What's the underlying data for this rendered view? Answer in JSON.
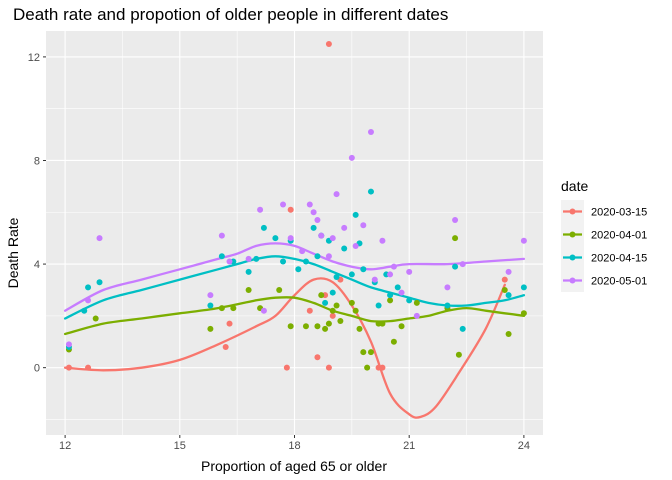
{
  "chart_data": {
    "type": "scatter",
    "title": "Death rate and propotion of older people in different dates",
    "xlabel": "Proportion of aged 65 or older",
    "ylabel": "Death Rate",
    "xlim": [
      11.5,
      24.5
    ],
    "ylim": [
      -2.6,
      13.0
    ],
    "xticks": [
      12,
      15,
      18,
      21,
      24
    ],
    "yticks": [
      0,
      4,
      8,
      12
    ],
    "grid": true,
    "legend": {
      "title": "date",
      "placement": "right"
    },
    "smooth": "loess",
    "series": [
      {
        "name": "2020-03-15",
        "color": "#F8766D",
        "points": [
          [
            12.1,
            0.0
          ],
          [
            12.6,
            0.0
          ],
          [
            16.2,
            0.8
          ],
          [
            16.3,
            1.7
          ],
          [
            17.8,
            0.0
          ],
          [
            17.9,
            6.1
          ],
          [
            18.4,
            2.2
          ],
          [
            18.6,
            0.4
          ],
          [
            18.8,
            2.8
          ],
          [
            18.9,
            0.0
          ],
          [
            18.9,
            12.5
          ],
          [
            19.0,
            2.0
          ],
          [
            19.2,
            3.4
          ],
          [
            20.2,
            0.0
          ],
          [
            20.3,
            0.0
          ],
          [
            23.5,
            3.4
          ]
        ],
        "smooth": [
          [
            12.0,
            0.0
          ],
          [
            13.0,
            -0.1
          ],
          [
            14.0,
            0.0
          ],
          [
            15.0,
            0.3
          ],
          [
            16.0,
            0.9
          ],
          [
            17.0,
            1.6
          ],
          [
            17.5,
            2.0
          ],
          [
            18.0,
            2.8
          ],
          [
            18.5,
            3.4
          ],
          [
            19.0,
            3.3
          ],
          [
            19.5,
            2.4
          ],
          [
            20.0,
            1.0
          ],
          [
            20.5,
            -1.0
          ],
          [
            21.0,
            -1.8
          ],
          [
            21.3,
            -1.9
          ],
          [
            21.7,
            -1.5
          ],
          [
            22.3,
            -0.2
          ],
          [
            23.0,
            1.5
          ],
          [
            23.5,
            3.2
          ]
        ]
      },
      {
        "name": "2020-04-01",
        "color": "#7CAE00",
        "points": [
          [
            12.1,
            0.7
          ],
          [
            12.8,
            1.9
          ],
          [
            15.8,
            1.5
          ],
          [
            16.1,
            2.3
          ],
          [
            16.4,
            2.3
          ],
          [
            16.8,
            3.0
          ],
          [
            17.1,
            2.3
          ],
          [
            17.6,
            3.0
          ],
          [
            17.9,
            1.6
          ],
          [
            18.3,
            1.6
          ],
          [
            18.6,
            1.6
          ],
          [
            18.7,
            2.8
          ],
          [
            18.8,
            1.5
          ],
          [
            18.9,
            1.7
          ],
          [
            19.0,
            2.2
          ],
          [
            19.1,
            2.4
          ],
          [
            19.2,
            1.8
          ],
          [
            19.5,
            2.5
          ],
          [
            19.6,
            2.2
          ],
          [
            19.7,
            1.5
          ],
          [
            19.8,
            0.6
          ],
          [
            19.9,
            0.0
          ],
          [
            20.0,
            0.6
          ],
          [
            20.2,
            1.7
          ],
          [
            20.3,
            1.7
          ],
          [
            20.5,
            2.6
          ],
          [
            20.6,
            1.0
          ],
          [
            20.8,
            1.6
          ],
          [
            21.2,
            2.5
          ],
          [
            22.0,
            2.3
          ],
          [
            22.2,
            5.0
          ],
          [
            22.3,
            0.5
          ],
          [
            23.5,
            3.0
          ],
          [
            23.6,
            1.3
          ],
          [
            24.0,
            2.1
          ]
        ],
        "smooth": [
          [
            12.0,
            1.3
          ],
          [
            13.0,
            1.7
          ],
          [
            14.0,
            1.9
          ],
          [
            15.0,
            2.1
          ],
          [
            16.0,
            2.3
          ],
          [
            17.0,
            2.6
          ],
          [
            17.5,
            2.7
          ],
          [
            18.0,
            2.7
          ],
          [
            18.5,
            2.5
          ],
          [
            19.0,
            2.2
          ],
          [
            19.5,
            2.0
          ],
          [
            20.0,
            1.8
          ],
          [
            20.5,
            1.8
          ],
          [
            21.0,
            1.9
          ],
          [
            21.5,
            2.0
          ],
          [
            22.0,
            2.2
          ],
          [
            22.5,
            2.3
          ],
          [
            23.0,
            2.2
          ],
          [
            23.5,
            2.1
          ],
          [
            24.0,
            2.0
          ]
        ]
      },
      {
        "name": "2020-04-15",
        "color": "#00BFC4",
        "points": [
          [
            12.1,
            0.8
          ],
          [
            12.5,
            2.2
          ],
          [
            12.6,
            3.1
          ],
          [
            12.9,
            3.3
          ],
          [
            15.8,
            2.4
          ],
          [
            16.1,
            4.3
          ],
          [
            16.4,
            4.1
          ],
          [
            16.8,
            3.7
          ],
          [
            17.0,
            4.2
          ],
          [
            17.2,
            5.4
          ],
          [
            17.5,
            5.0
          ],
          [
            17.7,
            4.1
          ],
          [
            17.9,
            4.9
          ],
          [
            18.1,
            3.8
          ],
          [
            18.3,
            4.1
          ],
          [
            18.5,
            5.4
          ],
          [
            18.6,
            4.3
          ],
          [
            18.7,
            5.1
          ],
          [
            18.8,
            2.5
          ],
          [
            18.9,
            4.9
          ],
          [
            19.0,
            2.9
          ],
          [
            19.1,
            3.5
          ],
          [
            19.3,
            4.6
          ],
          [
            19.5,
            3.6
          ],
          [
            19.6,
            5.9
          ],
          [
            19.7,
            4.8
          ],
          [
            19.8,
            3.8
          ],
          [
            20.0,
            6.8
          ],
          [
            20.1,
            3.3
          ],
          [
            20.2,
            2.4
          ],
          [
            20.4,
            3.6
          ],
          [
            20.5,
            2.8
          ],
          [
            20.7,
            3.1
          ],
          [
            21.0,
            2.6
          ],
          [
            22.0,
            2.4
          ],
          [
            22.2,
            3.9
          ],
          [
            22.4,
            1.5
          ],
          [
            23.6,
            2.8
          ],
          [
            24.0,
            3.1
          ]
        ],
        "smooth": [
          [
            12.0,
            1.9
          ],
          [
            13.0,
            2.6
          ],
          [
            14.0,
            3.0
          ],
          [
            15.0,
            3.4
          ],
          [
            16.0,
            3.8
          ],
          [
            16.5,
            4.0
          ],
          [
            17.0,
            4.2
          ],
          [
            17.5,
            4.3
          ],
          [
            18.0,
            4.2
          ],
          [
            18.5,
            4.0
          ],
          [
            19.0,
            3.7
          ],
          [
            19.5,
            3.4
          ],
          [
            20.0,
            3.1
          ],
          [
            20.5,
            2.9
          ],
          [
            21.0,
            2.7
          ],
          [
            21.5,
            2.5
          ],
          [
            22.0,
            2.4
          ],
          [
            22.5,
            2.4
          ],
          [
            23.0,
            2.5
          ],
          [
            23.5,
            2.6
          ],
          [
            24.0,
            2.8
          ]
        ]
      },
      {
        "name": "2020-05-01",
        "color": "#C77CFF",
        "points": [
          [
            12.1,
            0.9
          ],
          [
            12.6,
            2.6
          ],
          [
            12.9,
            5.0
          ],
          [
            15.8,
            2.8
          ],
          [
            16.1,
            5.1
          ],
          [
            16.3,
            4.1
          ],
          [
            16.8,
            4.2
          ],
          [
            17.1,
            6.1
          ],
          [
            17.2,
            2.2
          ],
          [
            17.7,
            6.3
          ],
          [
            17.9,
            5.0
          ],
          [
            18.2,
            4.5
          ],
          [
            18.4,
            6.3
          ],
          [
            18.5,
            6.0
          ],
          [
            18.6,
            5.7
          ],
          [
            18.7,
            5.1
          ],
          [
            18.9,
            4.3
          ],
          [
            19.0,
            5.0
          ],
          [
            19.1,
            6.7
          ],
          [
            19.3,
            5.4
          ],
          [
            19.5,
            8.1
          ],
          [
            19.6,
            4.7
          ],
          [
            19.8,
            5.5
          ],
          [
            20.0,
            9.1
          ],
          [
            20.1,
            3.4
          ],
          [
            20.3,
            4.9
          ],
          [
            20.5,
            3.6
          ],
          [
            20.6,
            3.9
          ],
          [
            20.8,
            2.9
          ],
          [
            21.0,
            3.7
          ],
          [
            21.2,
            2.0
          ],
          [
            22.0,
            3.1
          ],
          [
            22.2,
            5.7
          ],
          [
            22.4,
            4.0
          ],
          [
            23.6,
            3.7
          ],
          [
            24.0,
            4.9
          ]
        ],
        "smooth": [
          [
            12.0,
            2.2
          ],
          [
            13.0,
            3.0
          ],
          [
            14.0,
            3.4
          ],
          [
            15.0,
            3.8
          ],
          [
            16.0,
            4.2
          ],
          [
            16.5,
            4.4
          ],
          [
            17.0,
            4.7
          ],
          [
            17.5,
            4.8
          ],
          [
            18.0,
            4.7
          ],
          [
            18.5,
            4.4
          ],
          [
            19.0,
            4.1
          ],
          [
            19.5,
            3.9
          ],
          [
            20.0,
            3.8
          ],
          [
            20.5,
            3.9
          ],
          [
            21.0,
            4.0
          ],
          [
            22.0,
            4.0
          ],
          [
            23.0,
            4.1
          ],
          [
            24.0,
            4.2
          ]
        ]
      }
    ]
  }
}
